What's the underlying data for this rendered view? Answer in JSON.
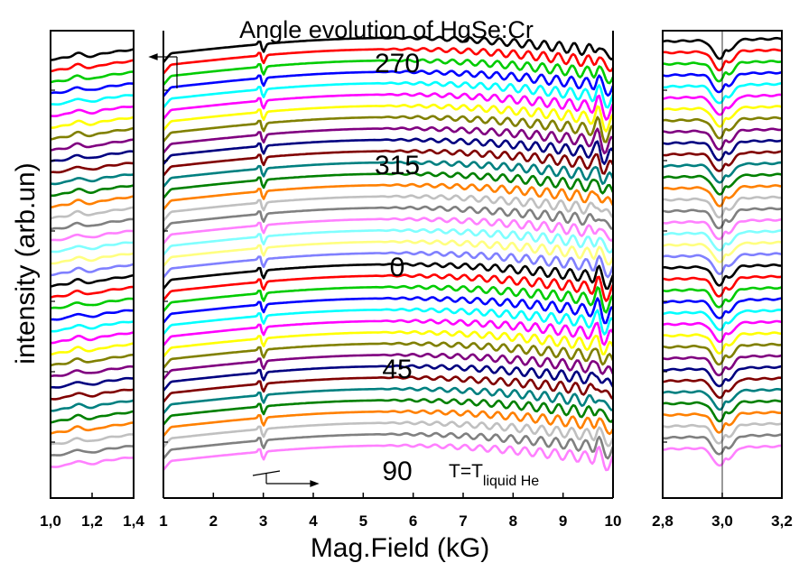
{
  "chart_data": {
    "type": "line",
    "title": "Angle evolution of HgSe:Cr",
    "ylabel": "intensity (arb.un)",
    "xlabel": "Mag.Field (kG)",
    "temperature_label": {
      "main": "T=T",
      "sub": "liquid He"
    },
    "angle_labels": [
      {
        "text": "270",
        "trace": 0
      },
      {
        "text": "315",
        "trace": 9
      },
      {
        "text": "0",
        "trace": 18
      },
      {
        "text": "45",
        "trace": 27
      },
      {
        "text": "90",
        "trace": 36
      }
    ],
    "series_colors": [
      "#000000",
      "#ff0000",
      "#00cc00",
      "#0000ff",
      "#00ffff",
      "#ff00ff",
      "#ffff00",
      "#808000",
      "#800080",
      "#000080",
      "#800000",
      "#008080",
      "#008000",
      "#ff8000",
      "#c0c0c0",
      "#808080",
      "#ff80ff",
      "#80ffff",
      "#ffff80",
      "#8080ff"
    ],
    "trace_count": 37,
    "panels": [
      {
        "name": "left-zoom",
        "xlim": [
          1.0,
          1.4
        ],
        "tick_labels": [
          "1,0",
          "1,2",
          "1,4"
        ],
        "tick_values": [
          1.0,
          1.2,
          1.4
        ]
      },
      {
        "name": "main",
        "xlim": [
          1,
          10
        ],
        "tick_labels": [
          "1",
          "2",
          "3",
          "4",
          "5",
          "6",
          "7",
          "8",
          "9",
          "10"
        ],
        "tick_values": [
          1,
          2,
          3,
          4,
          5,
          6,
          7,
          8,
          9,
          10
        ]
      },
      {
        "name": "right-zoom",
        "xlim": [
          2.8,
          3.2
        ],
        "tick_labels": [
          "2,8",
          "3,0",
          "3,2"
        ],
        "tick_values": [
          2.8,
          3.0,
          3.2
        ]
      }
    ]
  }
}
